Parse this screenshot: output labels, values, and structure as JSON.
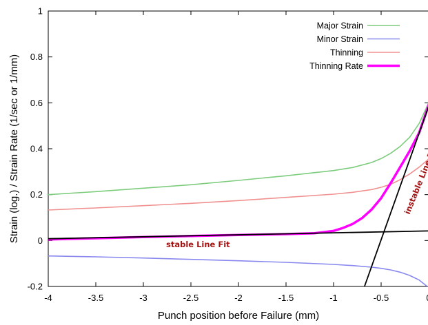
{
  "chart_data": {
    "type": "line",
    "xlabel": "Punch position before Failure (mm)",
    "ylabel": "Strain (log.) / Strain Rate (1/sec or 1/mm)",
    "xlim": [
      -4,
      0
    ],
    "ylim": [
      -0.2,
      1
    ],
    "x_ticks": [
      "-4",
      "-3.5",
      "-3",
      "-2.5",
      "-2",
      "-1.5",
      "-1",
      "-0.5",
      "0"
    ],
    "y_ticks": [
      "-0.2",
      "0",
      "0.2",
      "0.4",
      "0.6",
      "0.8",
      "1"
    ],
    "grid": false,
    "legend_position": "top-right",
    "series": [
      {
        "name": "Major Strain",
        "color": "#7ccc7c",
        "x": [
          -4,
          -3.5,
          -3,
          -2.5,
          -2,
          -1.5,
          -1,
          -0.8,
          -0.6,
          -0.5,
          -0.4,
          -0.3,
          -0.2,
          -0.1,
          0
        ],
        "y": [
          0.2,
          0.213,
          0.228,
          0.243,
          0.262,
          0.282,
          0.305,
          0.318,
          0.34,
          0.357,
          0.38,
          0.41,
          0.45,
          0.51,
          0.6
        ]
      },
      {
        "name": "Minor Strain",
        "color": "#8888ee",
        "x": [
          -4,
          -3.5,
          -3,
          -2.5,
          -2,
          -1.5,
          -1,
          -0.8,
          -0.6,
          -0.5,
          -0.4,
          -0.3,
          -0.2,
          -0.1,
          0
        ],
        "y": [
          -0.067,
          -0.071,
          -0.076,
          -0.082,
          -0.088,
          -0.095,
          -0.104,
          -0.109,
          -0.116,
          -0.121,
          -0.128,
          -0.138,
          -0.152,
          -0.172,
          -0.205
        ]
      },
      {
        "name": "Thinning",
        "color": "#f09090",
        "x": [
          -4,
          -3.5,
          -3,
          -2.5,
          -2,
          -1.5,
          -1,
          -0.8,
          -0.6,
          -0.5,
          -0.4,
          -0.3,
          -0.2,
          -0.1,
          0
        ],
        "y": [
          0.133,
          0.142,
          0.152,
          0.162,
          0.174,
          0.188,
          0.202,
          0.21,
          0.222,
          0.232,
          0.245,
          0.265,
          0.29,
          0.32,
          0.355
        ]
      },
      {
        "name": "Thinning Rate",
        "color": "#ff00ff",
        "x": [
          -4,
          -3.5,
          -3,
          -2.5,
          -2,
          -1.5,
          -1.2,
          -1,
          -0.9,
          -0.8,
          -0.7,
          -0.6,
          -0.5,
          -0.4,
          -0.3,
          -0.2,
          -0.1,
          0
        ],
        "y": [
          0.005,
          0.01,
          0.015,
          0.02,
          0.024,
          0.028,
          0.032,
          0.042,
          0.055,
          0.072,
          0.098,
          0.135,
          0.185,
          0.25,
          0.32,
          0.39,
          0.47,
          0.59
        ]
      }
    ],
    "fit_lines": [
      {
        "label": "stable Line Fit",
        "color": "#000000",
        "x": [
          -4,
          0
        ],
        "y": [
          0.008,
          0.042
        ]
      },
      {
        "label": "instable Line Fit",
        "color": "#000000",
        "x": [
          -0.675,
          0
        ],
        "y": [
          -0.2,
          0.585
        ]
      }
    ]
  }
}
